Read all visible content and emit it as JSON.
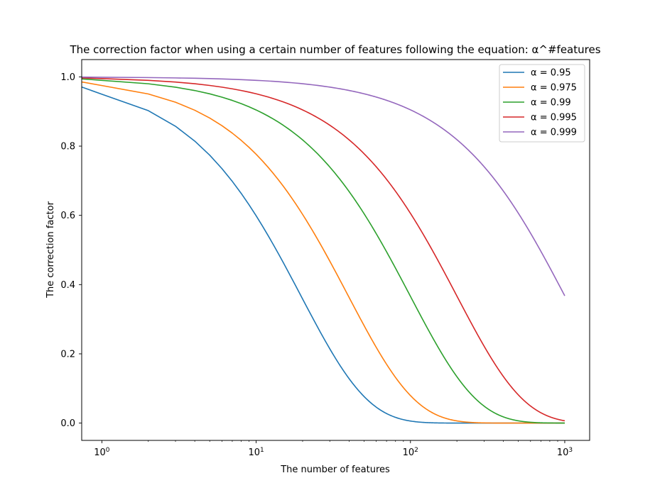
{
  "chart_data": {
    "type": "line",
    "title": "The correction factor when using a certain number of features following the equation: α^#features",
    "xlabel": "The number of features",
    "ylabel": "The correction factor",
    "xscale": "log",
    "xlim": [
      0.74,
      1450
    ],
    "ylim": [
      -0.05,
      1.05
    ],
    "x_ticks": [
      {
        "value": 1,
        "base": "10",
        "exp": "0"
      },
      {
        "value": 10,
        "base": "10",
        "exp": "1"
      },
      {
        "value": 100,
        "base": "10",
        "exp": "2"
      },
      {
        "value": 1000,
        "base": "10",
        "exp": "3"
      }
    ],
    "y_ticks": [
      {
        "value": 0.0,
        "label": "0.0"
      },
      {
        "value": 0.2,
        "label": "0.2"
      },
      {
        "value": 0.4,
        "label": "0.4"
      },
      {
        "value": 0.6,
        "label": "0.6"
      },
      {
        "value": 0.8,
        "label": "0.8"
      },
      {
        "value": 1.0,
        "label": "1.0"
      }
    ],
    "x_range": [
      0,
      1000
    ],
    "equation": "y = alpha^x (x = 1..1000, first point at x = 0 drawn at left edge)",
    "grid": false,
    "legend_position": "top-right",
    "series": [
      {
        "name": "α = 0.95",
        "alpha": 0.95,
        "color": "#1f77b4"
      },
      {
        "name": "α = 0.975",
        "alpha": 0.975,
        "color": "#ff7f0e"
      },
      {
        "name": "α = 0.99",
        "alpha": 0.99,
        "color": "#2ca02c"
      },
      {
        "name": "α = 0.995",
        "alpha": 0.995,
        "color": "#d62728"
      },
      {
        "name": "α = 0.999",
        "alpha": 0.999,
        "color": "#9467bd"
      }
    ]
  }
}
